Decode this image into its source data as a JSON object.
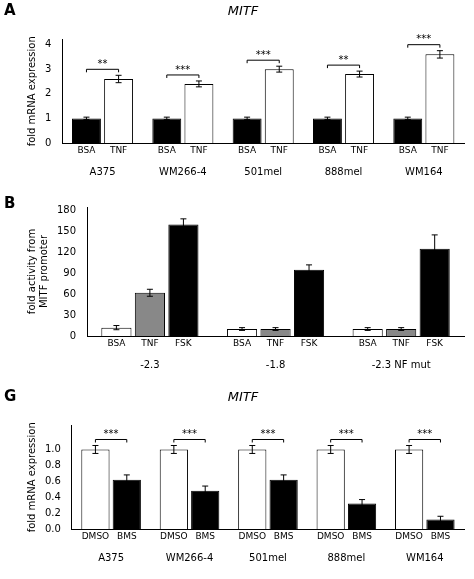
{
  "chart_data": [
    {
      "type": "bar",
      "panel": "A",
      "title": "MITF",
      "y_label": "fold mRNA expression",
      "categories": [
        "A375",
        "WM266-4",
        "501mel",
        "888mel",
        "WM164"
      ],
      "series": [
        {
          "name": "BSA",
          "color": "#000000",
          "values": [
            1.0,
            1.0,
            1.0,
            1.0,
            1.0
          ],
          "errors": [
            0.05,
            0.05,
            0.05,
            0.05,
            0.05
          ]
        },
        {
          "name": "TNF",
          "color": "#ffffff",
          "values": [
            2.6,
            2.4,
            3.0,
            2.8,
            3.6
          ],
          "errors": [
            0.15,
            0.12,
            0.12,
            0.12,
            0.15
          ]
        }
      ],
      "annotations": [
        "**",
        "***",
        "***",
        "**",
        "***"
      ],
      "ylim": [
        0,
        4.2
      ],
      "yticks": [
        0,
        1,
        2,
        3,
        4
      ],
      "grid": false
    },
    {
      "type": "bar",
      "panel": "B",
      "y_label": "fold activity from\nMITF promoter",
      "categories": [
        "-2.3",
        "-1.8",
        "-2.3 NF mut"
      ],
      "series": [
        {
          "name": "BSA",
          "color": "#ffffff",
          "values": [
            12,
            10,
            10
          ],
          "errors": [
            3,
            2,
            2
          ]
        },
        {
          "name": "TNF",
          "color": "#888888",
          "values": [
            62,
            10,
            10
          ],
          "errors": [
            5,
            2,
            2
          ]
        },
        {
          "name": "FSK",
          "color": "#000000",
          "values": [
            160,
            95,
            125
          ],
          "errors": [
            8,
            7,
            20
          ]
        }
      ],
      "ylim": [
        0,
        185
      ],
      "yticks": [
        0,
        30,
        60,
        90,
        120,
        150,
        180
      ],
      "grid": false
    },
    {
      "type": "bar",
      "panel": "G",
      "title": "MITF",
      "y_label": "fold mRNA expression",
      "categories": [
        "A375",
        "WM266-4",
        "501mel",
        "888mel",
        "WM164"
      ],
      "series": [
        {
          "name": "DMSO",
          "color": "#ffffff",
          "values": [
            1.0,
            1.0,
            1.0,
            1.0,
            1.0
          ],
          "errors": [
            0.05,
            0.05,
            0.05,
            0.05,
            0.05
          ]
        },
        {
          "name": "BMS",
          "color": "#000000",
          "values": [
            0.62,
            0.48,
            0.62,
            0.32,
            0.12
          ],
          "errors": [
            0.06,
            0.06,
            0.06,
            0.05,
            0.04
          ]
        }
      ],
      "annotations": [
        "***",
        "***",
        "***",
        "***",
        "***"
      ],
      "ylim": [
        0,
        1.3
      ],
      "yticks": [
        {
          "value": 0.0,
          "label": "0.0"
        },
        {
          "value": 0.2,
          "label": "0.2"
        },
        {
          "value": 0.4,
          "label": "0.4"
        },
        {
          "value": 0.6,
          "label": "0.6"
        },
        {
          "value": 0.8,
          "label": "0.8"
        },
        {
          "value": 1.0,
          "label": "1.0"
        }
      ],
      "grid": false
    }
  ]
}
